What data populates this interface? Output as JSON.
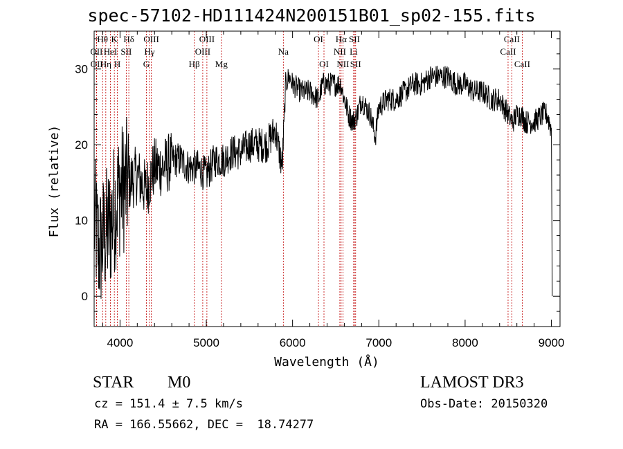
{
  "chart_data": {
    "type": "line",
    "title": "spec-57102-HD111424N200151B01_sp02-155.fits",
    "xlabel": "Wavelength (Å)",
    "ylabel": "Flux (relative)",
    "xlim": [
      3700,
      9100
    ],
    "ylim": [
      -4,
      35
    ],
    "xticks": [
      4000,
      5000,
      6000,
      7000,
      8000,
      9000
    ],
    "yticks": [
      0,
      10,
      20,
      30
    ],
    "grid": false,
    "series": [
      {
        "name": "flux",
        "color": "#000000",
        "x": [
          3700,
          3760,
          3820,
          3880,
          3940,
          4000,
          4100,
          4200,
          4300,
          4400,
          4500,
          4600,
          4700,
          4800,
          4900,
          5000,
          5100,
          5200,
          5300,
          5400,
          5500,
          5600,
          5700,
          5800,
          5880,
          5920,
          5960,
          6000,
          6100,
          6200,
          6300,
          6350,
          6400,
          6500,
          6560,
          6600,
          6650,
          6700,
          6750,
          6800,
          6900,
          6960,
          7000,
          7100,
          7200,
          7300,
          7400,
          7500,
          7600,
          7700,
          7800,
          7900,
          8000,
          8100,
          8200,
          8300,
          8400,
          8500,
          8550,
          8600,
          8650,
          8700,
          8800,
          8900,
          8950,
          9000,
          9010
        ],
        "y": [
          10,
          6,
          8,
          9,
          12,
          14,
          15,
          16,
          14,
          17,
          17,
          18,
          18,
          17,
          17,
          16,
          18,
          18,
          19,
          19,
          20,
          20,
          20,
          22,
          17,
          28,
          29,
          28,
          27,
          27,
          26,
          28,
          28,
          28,
          28,
          26,
          24,
          23,
          24,
          26,
          24,
          21,
          25,
          26,
          26,
          27,
          28,
          28,
          29,
          29,
          29,
          28,
          28,
          27,
          27,
          26,
          26,
          24,
          23,
          24,
          24,
          23,
          23,
          24,
          24,
          22,
          0
        ]
      }
    ],
    "spectral_lines": [
      {
        "name": "Hθ",
        "wavelength": 3798,
        "row": 0
      },
      {
        "name": "OII",
        "wavelength": 3727,
        "row": 1
      },
      {
        "name": "OII",
        "wavelength": 3729,
        "row": 2
      },
      {
        "name": "HeI",
        "wavelength": 3889,
        "row": 1
      },
      {
        "name": "Hη",
        "wavelength": 3835,
        "row": 2
      },
      {
        "name": "K",
        "wavelength": 3934,
        "row": 0
      },
      {
        "name": "H",
        "wavelength": 3969,
        "row": 2
      },
      {
        "name": "SII",
        "wavelength": 4072,
        "row": 1
      },
      {
        "name": "Hδ",
        "wavelength": 4102,
        "row": 0
      },
      {
        "name": "OIII",
        "wavelength": 4363,
        "row": 0
      },
      {
        "name": "Hγ",
        "wavelength": 4341,
        "row": 1
      },
      {
        "name": "G",
        "wavelength": 4305,
        "row": 2
      },
      {
        "name": "Hβ",
        "wavelength": 4861,
        "row": 2
      },
      {
        "name": "OIII",
        "wavelength": 5007,
        "row": 0
      },
      {
        "name": "OIII",
        "wavelength": 4959,
        "row": 1
      },
      {
        "name": "Mg",
        "wavelength": 5175,
        "row": 2
      },
      {
        "name": "Na",
        "wavelength": 5893,
        "row": 1
      },
      {
        "name": "OI",
        "wavelength": 6300,
        "row": 0
      },
      {
        "name": "OI",
        "wavelength": 6364,
        "row": 2
      },
      {
        "name": "Hα",
        "wavelength": 6563,
        "row": 0
      },
      {
        "name": "NII",
        "wavelength": 6548,
        "row": 1
      },
      {
        "name": "NII",
        "wavelength": 6584,
        "row": 2
      },
      {
        "name": "SII",
        "wavelength": 6717,
        "row": 0
      },
      {
        "name": "Li",
        "wavelength": 6708,
        "row": 1
      },
      {
        "name": "SII",
        "wavelength": 6731,
        "row": 2
      },
      {
        "name": "CaII",
        "wavelength": 8542,
        "row": 0
      },
      {
        "name": "CaII",
        "wavelength": 8498,
        "row": 1
      },
      {
        "name": "CaII",
        "wavelength": 8662,
        "row": 2
      }
    ]
  },
  "info": {
    "object_class": "STAR",
    "subclass": "M0",
    "survey": "LAMOST DR3",
    "cz": "cz = 151.4 ± 7.5 km/s",
    "obs_date": "Obs-Date: 20150320",
    "coords": "RA = 166.55662, DEC =  18.74277"
  }
}
